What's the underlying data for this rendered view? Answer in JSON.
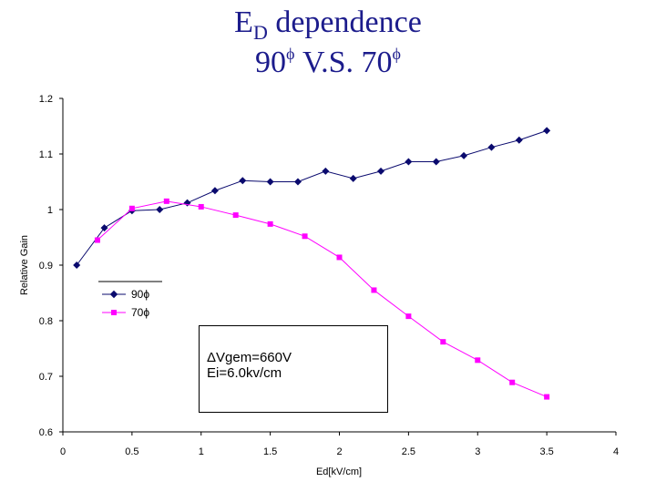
{
  "title": {
    "line1_main": "E",
    "line1_sub": "D",
    "line1_rest": " dependence",
    "line2_a": "90",
    "line2_sup1": "ϕ",
    "line2_b": " V.S. 70",
    "line2_sup2": "ϕ"
  },
  "annotation": {
    "line1": "ΔVgem=660V",
    "line2": "Ei=6.0kv/cm"
  },
  "chart_data": {
    "type": "line",
    "xlabel": "Ed[kV/cm]",
    "ylabel": "Relative Gain",
    "xlim": [
      0,
      4
    ],
    "ylim": [
      0.6,
      1.2
    ],
    "x_ticks": [
      "0",
      "0.5",
      "1",
      "1.5",
      "2",
      "2.5",
      "3",
      "3.5",
      "4"
    ],
    "x_tick_values": [
      0,
      0.5,
      1,
      1.5,
      2,
      2.5,
      3,
      3.5,
      4
    ],
    "y_ticks": [
      "0.6",
      "0.7",
      "0.8",
      "0.9",
      "1",
      "1.1",
      "1.2"
    ],
    "y_tick_values": [
      0.6,
      0.7,
      0.8,
      0.9,
      1.0,
      1.1,
      1.2
    ],
    "grid": false,
    "legend_position": "left",
    "series": [
      {
        "name": "90ϕ",
        "color": "#0a0a6e",
        "marker": "diamond",
        "x": [
          0.1,
          0.3,
          0.5,
          0.7,
          0.9,
          1.1,
          1.3,
          1.5,
          1.7,
          1.9,
          2.1,
          2.3,
          2.5,
          2.7,
          2.9,
          3.1,
          3.3,
          3.5
        ],
        "y": [
          0.9,
          0.967,
          0.998,
          1.0,
          1.012,
          1.034,
          1.052,
          1.05,
          1.05,
          1.069,
          1.056,
          1.069,
          1.086,
          1.086,
          1.097,
          1.112,
          1.125,
          1.142
        ]
      },
      {
        "name": "70ϕ",
        "color": "#ff00ff",
        "marker": "square",
        "x": [
          0.25,
          0.5,
          0.75,
          1.0,
          1.25,
          1.5,
          1.75,
          2.0,
          2.25,
          2.5,
          2.75,
          3.0,
          3.25,
          3.5
        ],
        "y": [
          0.945,
          1.002,
          1.015,
          1.005,
          0.99,
          0.974,
          0.952,
          0.914,
          0.855,
          0.808,
          0.762,
          0.729,
          0.689,
          0.663
        ]
      }
    ]
  }
}
